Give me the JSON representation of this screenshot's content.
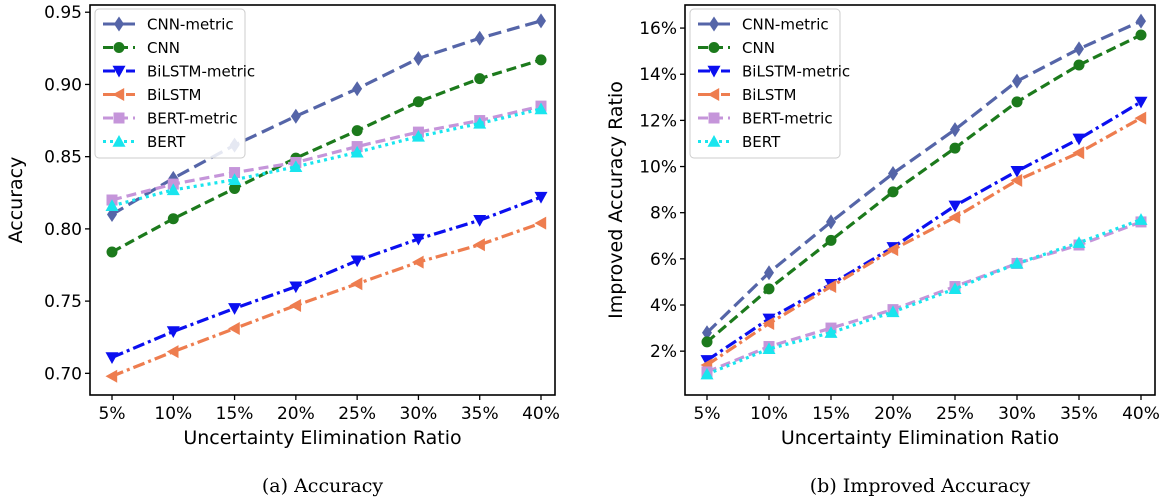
{
  "chart_data": [
    {
      "type": "line",
      "caption": "(a)  Accuracy",
      "xlabel": "Uncertainty Elimination Ratio",
      "ylabel": "Accuracy",
      "categories": [
        "5%",
        "10%",
        "15%",
        "20%",
        "25%",
        "30%",
        "35%",
        "40%"
      ],
      "ylim": [
        0.685,
        0.955
      ],
      "yticks": [
        0.7,
        0.75,
        0.8,
        0.85,
        0.9,
        0.95
      ],
      "ytick_labels": [
        "0.70",
        "0.75",
        "0.80",
        "0.85",
        "0.90",
        "0.95"
      ],
      "legend_position": "top-left",
      "series": [
        {
          "name": "CNN-metric",
          "color": "#5565a8",
          "dash": "long-dash",
          "marker": "diamond",
          "values": [
            0.81,
            0.835,
            0.858,
            0.878,
            0.897,
            0.918,
            0.932,
            0.944
          ]
        },
        {
          "name": "CNN",
          "color": "#1c7a1c",
          "dash": "dash",
          "marker": "circle",
          "values": [
            0.784,
            0.807,
            0.828,
            0.849,
            0.868,
            0.888,
            0.904,
            0.917
          ]
        },
        {
          "name": "BiLSTM-metric",
          "color": "#0b0ff0",
          "dash": "dashdot",
          "marker": "triangle-down",
          "values": [
            0.711,
            0.729,
            0.745,
            0.76,
            0.778,
            0.793,
            0.806,
            0.822
          ]
        },
        {
          "name": "BiLSTM",
          "color": "#ee7d4f",
          "dash": "dashdot",
          "marker": "triangle-left",
          "values": [
            0.698,
            0.715,
            0.731,
            0.747,
            0.762,
            0.777,
            0.789,
            0.804
          ]
        },
        {
          "name": "BERT-metric",
          "color": "#c595da",
          "dash": "dash",
          "marker": "square",
          "values": [
            0.82,
            0.831,
            0.839,
            0.846,
            0.857,
            0.867,
            0.875,
            0.885
          ]
        },
        {
          "name": "BERT",
          "color": "#19e5ee",
          "dash": "dot",
          "marker": "triangle-up",
          "values": [
            0.816,
            0.827,
            0.834,
            0.843,
            0.853,
            0.864,
            0.873,
            0.883
          ]
        }
      ]
    },
    {
      "type": "line",
      "caption": "(b)  Improved Accuracy",
      "xlabel": "Uncertainty Elimination Ratio",
      "ylabel": "Improved Accuracy Ratio",
      "categories": [
        "5%",
        "10%",
        "15%",
        "20%",
        "25%",
        "30%",
        "35%",
        "40%"
      ],
      "ylim": [
        0.1,
        17.0
      ],
      "yticks": [
        2,
        4,
        6,
        8,
        10,
        12,
        14,
        16
      ],
      "ytick_labels": [
        "2%",
        "4%",
        "6%",
        "8%",
        "10%",
        "12%",
        "14%",
        "16%"
      ],
      "legend_position": "top-left",
      "series": [
        {
          "name": "CNN-metric",
          "color": "#5565a8",
          "dash": "long-dash",
          "marker": "diamond",
          "values": [
            2.8,
            5.4,
            7.6,
            9.7,
            11.6,
            13.7,
            15.1,
            16.3
          ]
        },
        {
          "name": "CNN",
          "color": "#1c7a1c",
          "dash": "dash",
          "marker": "circle",
          "values": [
            2.4,
            4.7,
            6.8,
            8.9,
            10.8,
            12.8,
            14.4,
            15.7
          ]
        },
        {
          "name": "BiLSTM-metric",
          "color": "#0b0ff0",
          "dash": "dashdot",
          "marker": "triangle-down",
          "values": [
            1.6,
            3.4,
            4.9,
            6.5,
            8.3,
            9.8,
            11.2,
            12.8
          ]
        },
        {
          "name": "BiLSTM",
          "color": "#ee7d4f",
          "dash": "dashdot",
          "marker": "triangle-left",
          "values": [
            1.4,
            3.2,
            4.8,
            6.4,
            7.8,
            9.4,
            10.6,
            12.1
          ]
        },
        {
          "name": "BERT-metric",
          "color": "#c595da",
          "dash": "dash",
          "marker": "square",
          "values": [
            1.1,
            2.2,
            3.0,
            3.8,
            4.8,
            5.8,
            6.6,
            7.6
          ]
        },
        {
          "name": "BERT",
          "color": "#19e5ee",
          "dash": "dot",
          "marker": "triangle-up",
          "values": [
            1.0,
            2.1,
            2.8,
            3.7,
            4.7,
            5.8,
            6.7,
            7.7
          ]
        }
      ]
    }
  ]
}
